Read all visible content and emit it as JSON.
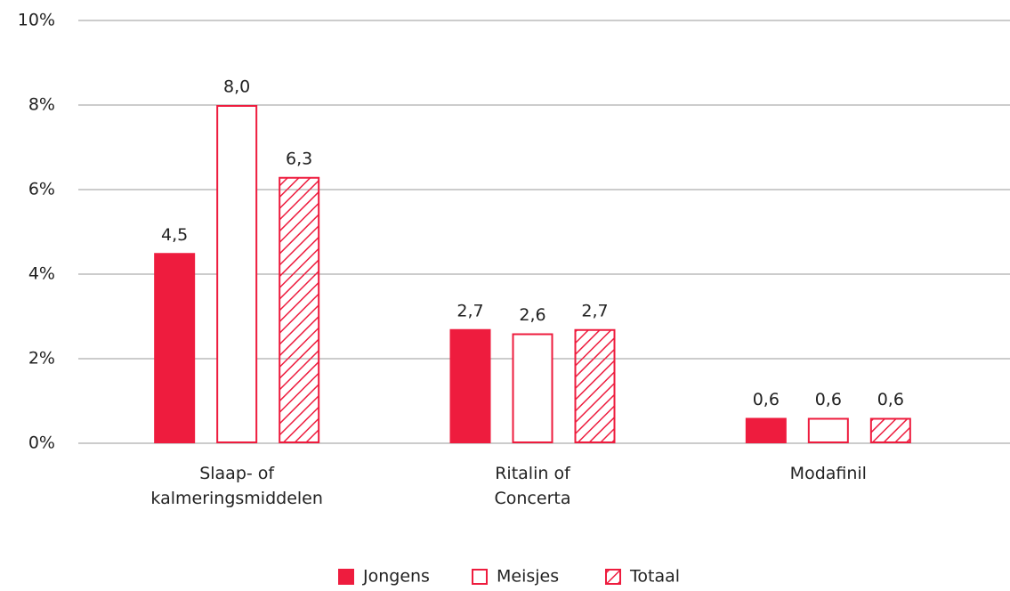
{
  "chart_data": {
    "type": "bar",
    "categories": [
      "Slaap- of kalmeringsmiddelen",
      "Ritalin of Concerta",
      "Modafinil"
    ],
    "series": [
      {
        "name": "Jongens",
        "color": "#ee1c3e",
        "style": "solid",
        "values": [
          4.5,
          2.7,
          0.6
        ],
        "value_labels": [
          "4,5",
          "2,7",
          "0,6"
        ]
      },
      {
        "name": "Meisjes",
        "color": "#ee1c3e",
        "style": "outline",
        "values": [
          8.0,
          2.6,
          0.6
        ],
        "value_labels": [
          "8,0",
          "2,6",
          "0,6"
        ]
      },
      {
        "name": "Totaal",
        "color": "#ee1c3e",
        "style": "hatch",
        "values": [
          6.3,
          2.7,
          0.6
        ],
        "value_labels": [
          "6,3",
          "2,7",
          "0,6"
        ]
      }
    ],
    "ylim": [
      0,
      10
    ],
    "yticks": [
      {
        "value": 0,
        "label": "0%"
      },
      {
        "value": 2,
        "label": "2%"
      },
      {
        "value": 4,
        "label": "4%"
      },
      {
        "value": 6,
        "label": "6%"
      },
      {
        "value": 8,
        "label": "8%"
      },
      {
        "value": 10,
        "label": "10%"
      }
    ],
    "grid": true,
    "legend": "bottom"
  }
}
